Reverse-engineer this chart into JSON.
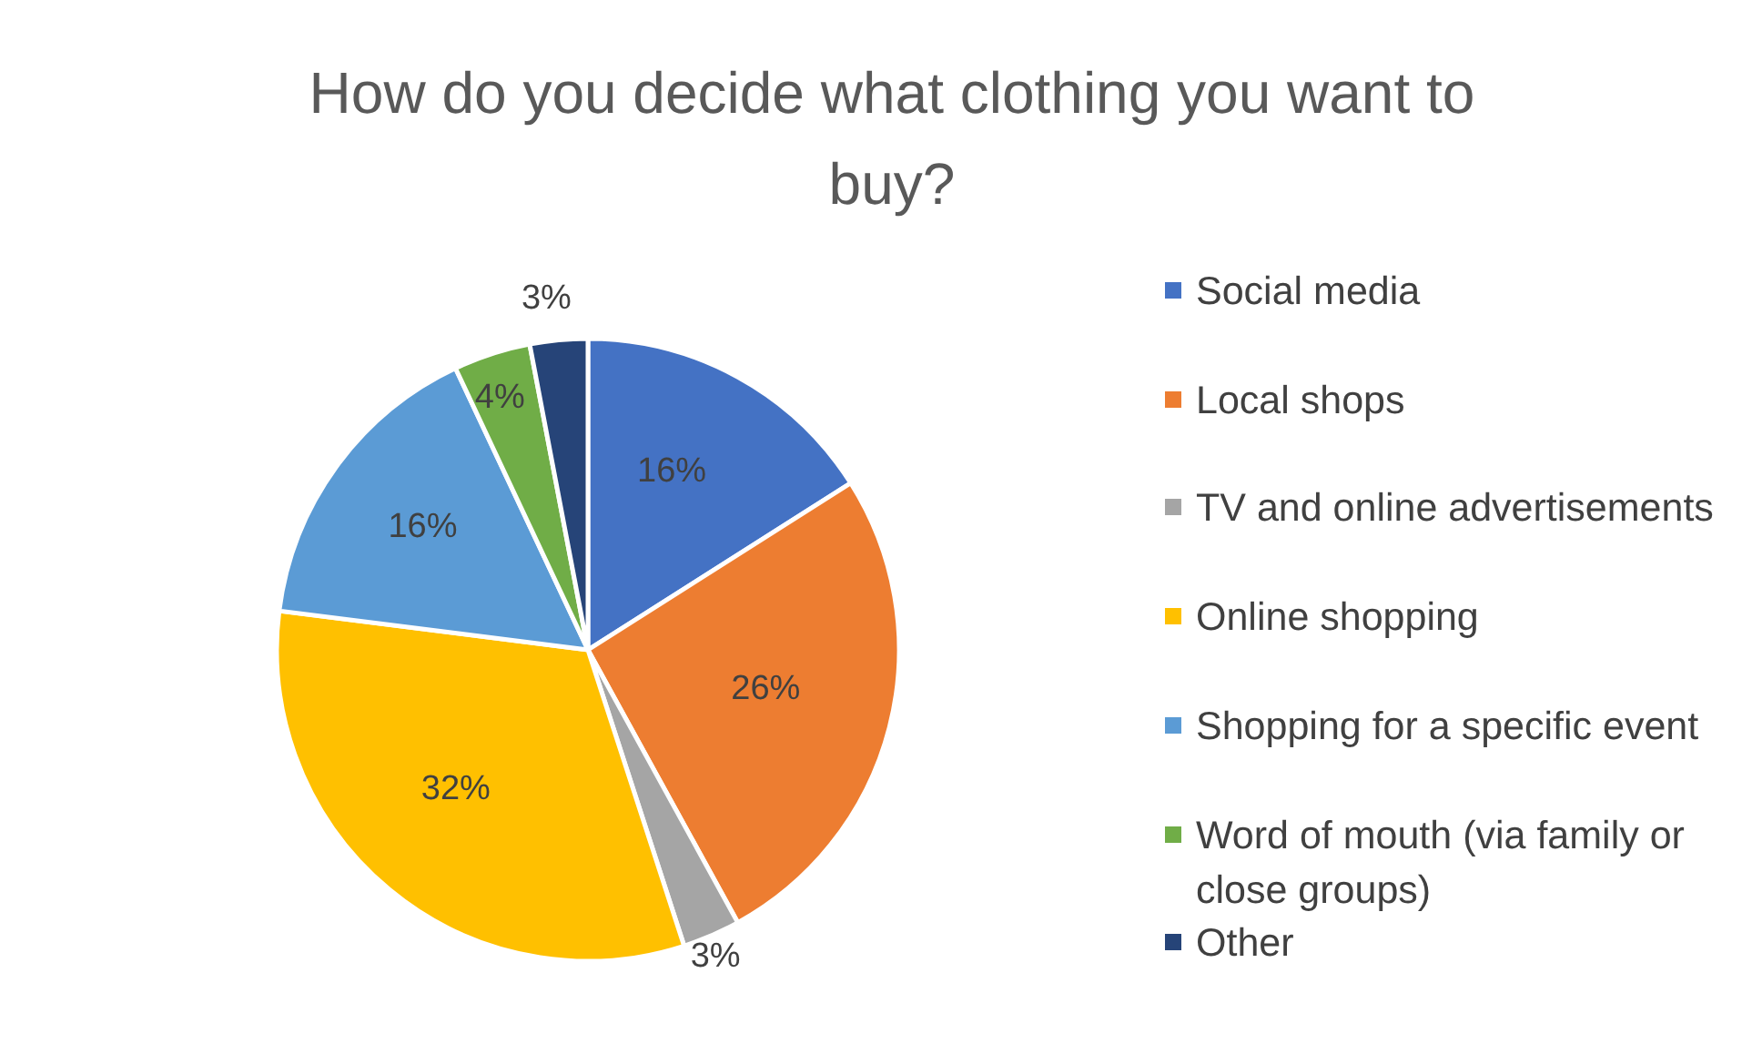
{
  "chart_data": {
    "type": "pie",
    "title": "How do you decide what clothing you want to buy?",
    "categories": [
      "Social media",
      "Local shops",
      "TV and online advertisements",
      "Online shopping",
      "Shopping for a specific event",
      "Word of mouth (via family or close groups)",
      "Other"
    ],
    "values": [
      16,
      26,
      3,
      32,
      16,
      4,
      3
    ],
    "colors": [
      "#4472c4",
      "#ed7d31",
      "#a5a5a5",
      "#ffc000",
      "#5b9bd5",
      "#70ad47",
      "#264478"
    ],
    "value_labels": [
      "16%",
      "26%",
      "3%",
      "32%",
      "16%",
      "4%",
      "3%"
    ],
    "legend": "right"
  }
}
